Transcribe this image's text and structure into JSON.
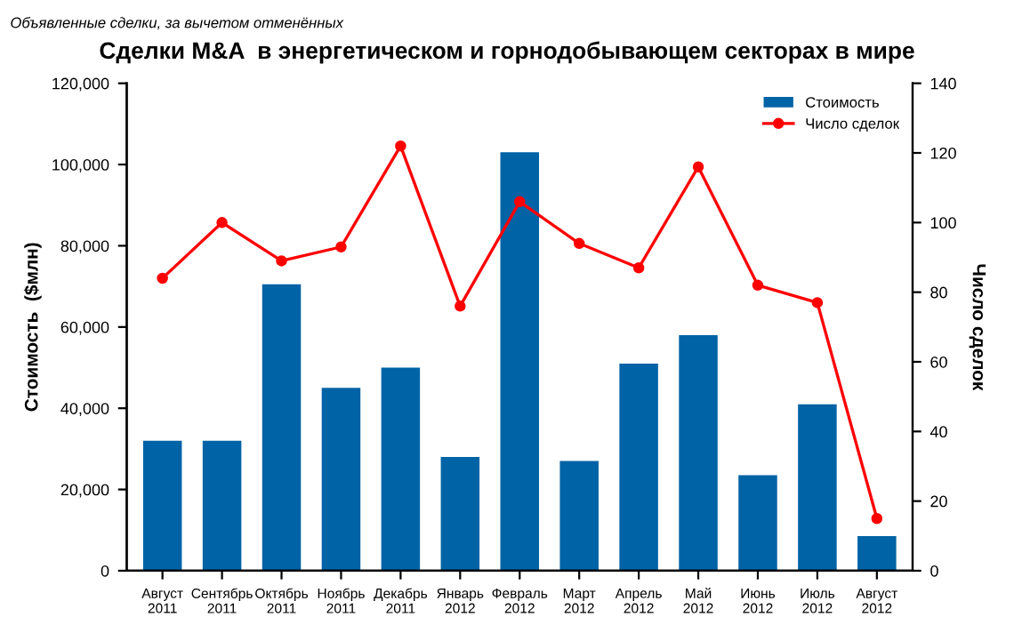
{
  "chart_data": {
    "type": "bar",
    "title": "Сделки M&A  в энергетическом и горнодобывающем секторах в мире",
    "annotations": [
      "Объявленные сделки, за вычетом отменённых"
    ],
    "categories": [
      "Август\n2011",
      "Сентябрь\n2011",
      "Октябрь\n2011",
      "Ноябрь\n2011",
      "Декабрь\n2011",
      "Январь\n2012",
      "Февраль\n2012",
      "Март\n2012",
      "Апрель\n2012",
      "Май\n2012",
      "Июнь\n2012",
      "Июль\n2012",
      "Август\n2012"
    ],
    "series": [
      {
        "name": "Стоимость",
        "color": "#0063a6",
        "values": [
          32000,
          32000,
          70500,
          45000,
          50000,
          28000,
          103000,
          27000,
          51000,
          58000,
          23500,
          41000,
          8500
        ]
      },
      {
        "name": "Число сделок",
        "type": "line",
        "axis": "y2",
        "color": "#ff0000",
        "values": [
          84,
          100,
          89,
          93,
          122,
          76,
          106,
          94,
          87,
          116,
          82,
          77,
          15
        ]
      }
    ],
    "ylabel": "Стоимость  ($млн)",
    "y2label": "Число сделок",
    "ylim": [
      0,
      120000
    ],
    "yticks": [
      {
        "value": 0,
        "label": "0"
      },
      {
        "value": 20000,
        "label": "20,000"
      },
      {
        "value": 40000,
        "label": "40,000"
      },
      {
        "value": 60000,
        "label": "60,000"
      },
      {
        "value": 80000,
        "label": "80,000"
      },
      {
        "value": 100000,
        "label": "100,000"
      },
      {
        "value": 120000,
        "label": "120,000"
      }
    ],
    "y2lim": [
      0,
      140
    ],
    "y2ticks": [
      0,
      20,
      40,
      60,
      80,
      100,
      120,
      140
    ],
    "marker": "circle",
    "line_style": "solid",
    "grid": false,
    "legend": "top right"
  }
}
